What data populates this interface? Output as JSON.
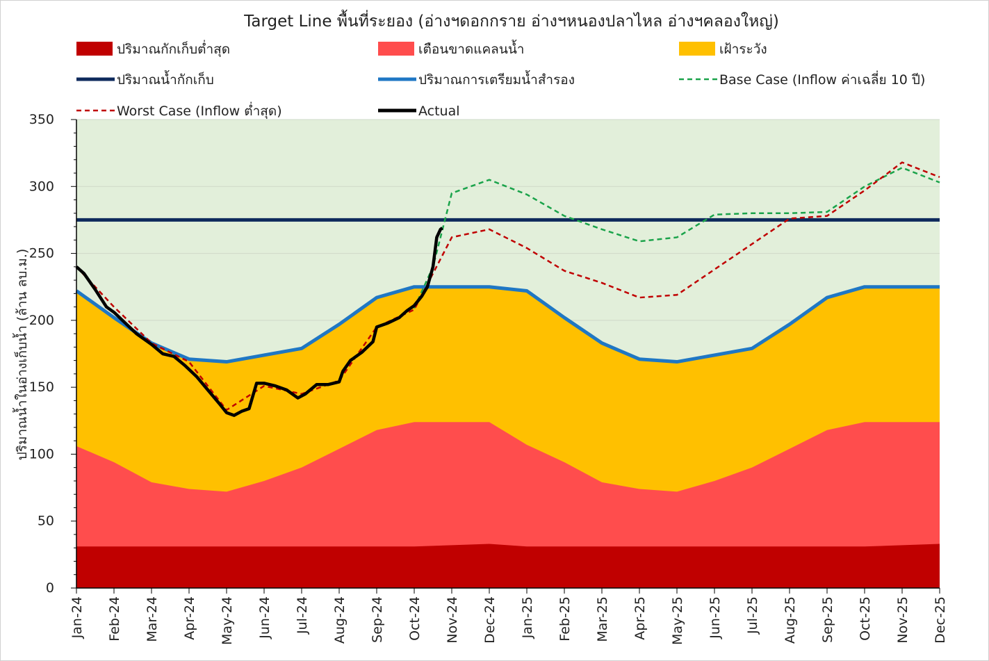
{
  "chart_data": {
    "type": "area",
    "title": "Target Line พื้นที่ระยอง (อ่างฯดอกกราย อ่างฯหนองปลาไหล อ่างฯคลองใหญ่)",
    "xlabel": "",
    "ylabel": "ปริมาณน้ำในอ่างเก็บน้ำ (ล้าน ลบ.ม.)",
    "ylim": [
      0,
      350
    ],
    "yticks": [
      0,
      50,
      100,
      150,
      200,
      250,
      300,
      350
    ],
    "categories": [
      "Jan-24",
      "Feb-24",
      "Mar-24",
      "Apr-24",
      "May-24",
      "Jun-24",
      "Jul-24",
      "Aug-24",
      "Sep-24",
      "Oct-24",
      "Nov-24",
      "Dec-24",
      "Jan-25",
      "Feb-25",
      "Mar-25",
      "Apr-25",
      "May-25",
      "Jun-25",
      "Jul-25",
      "Aug-25",
      "Sep-25",
      "Oct-25",
      "Nov-25",
      "Dec-25"
    ],
    "grid": true,
    "legend_position": "top",
    "series": [
      {
        "name": "ปริมาณกักเก็บต่ำสุด",
        "kind": "area",
        "color": "#c00000",
        "values": [
          31,
          31,
          31,
          31,
          31,
          31,
          31,
          31,
          31,
          31,
          32,
          33,
          31,
          31,
          31,
          31,
          31,
          31,
          31,
          31,
          31,
          31,
          32,
          33
        ]
      },
      {
        "name": "เตือนขาดแคลนน้ำ",
        "kind": "area",
        "color": "#ff4d4d",
        "values": [
          106,
          94,
          79,
          74,
          72,
          80,
          90,
          104,
          118,
          124,
          124,
          124,
          107,
          94,
          79,
          74,
          72,
          80,
          90,
          104,
          118,
          124,
          124,
          124
        ]
      },
      {
        "name": "เฝ้าระวัง",
        "kind": "area",
        "color": "#ffc000",
        "values": [
          222,
          202,
          183,
          171,
          169,
          174,
          179,
          197,
          217,
          225,
          225,
          225,
          222,
          202,
          183,
          171,
          169,
          174,
          179,
          197,
          217,
          225,
          225,
          225
        ]
      },
      {
        "name": "ปริมาณน้ำกักเก็บ",
        "kind": "line",
        "color": "#0e2a5c",
        "values": [
          275,
          275,
          275,
          275,
          275,
          275,
          275,
          275,
          275,
          275,
          275,
          275,
          275,
          275,
          275,
          275,
          275,
          275,
          275,
          275,
          275,
          275,
          275,
          275
        ]
      },
      {
        "name": "ปริมาณการเตรียมน้ำสำรอง",
        "kind": "line",
        "color": "#1f77c4",
        "values": [
          222,
          202,
          183,
          171,
          169,
          174,
          179,
          197,
          217,
          225,
          225,
          225,
          222,
          202,
          183,
          171,
          169,
          174,
          179,
          197,
          217,
          225,
          225,
          225
        ]
      },
      {
        "name": "Base Case (Inflow ค่าเฉลี่ย 10 ปี)",
        "kind": "dashed",
        "color": "#1aa34a",
        "x": [
          9,
          9.5,
          10,
          11,
          12,
          13,
          14,
          15,
          16,
          17,
          18,
          19,
          20,
          21,
          22,
          23
        ],
        "values": [
          209,
          240,
          295,
          305,
          294,
          278,
          268,
          259,
          262,
          279,
          280,
          280,
          281,
          300,
          314,
          303
        ]
      },
      {
        "name": "Worst Case (Inflow ต่ำสุด)",
        "kind": "dashed",
        "color": "#c00000",
        "x": [
          0,
          1,
          2,
          3,
          4,
          5,
          6,
          7,
          8,
          9,
          10,
          11,
          12,
          13,
          14,
          15,
          16,
          17,
          18,
          19,
          20,
          21,
          22,
          23
        ],
        "values": [
          240,
          210,
          183,
          169,
          133,
          151,
          145,
          155,
          195,
          208,
          262,
          268,
          254,
          237,
          228,
          217,
          219,
          238,
          257,
          276,
          278,
          297,
          318,
          307
        ]
      },
      {
        "name": "Actual",
        "kind": "thick",
        "color": "#000000",
        "x": [
          0,
          0.2,
          0.5,
          0.8,
          1.0,
          1.3,
          1.6,
          1.9,
          2.0,
          2.3,
          2.6,
          2.9,
          3.2,
          3.5,
          3.8,
          4.0,
          4.2,
          4.4,
          4.6,
          4.8,
          5.0,
          5.3,
          5.6,
          5.9,
          6.1,
          6.4,
          6.7,
          7.0,
          7.1,
          7.3,
          7.6,
          7.9,
          8.0,
          8.3,
          8.6,
          8.8,
          9.0,
          9.2,
          9.35,
          9.5,
          9.6,
          9.7,
          9.75
        ],
        "values": [
          240,
          235,
          223,
          210,
          206,
          198,
          190,
          184,
          182,
          175,
          173,
          166,
          158,
          148,
          138,
          131,
          129,
          132,
          134,
          153,
          153,
          151,
          148,
          142,
          145,
          152,
          152,
          154,
          162,
          170,
          176,
          184,
          195,
          198,
          202,
          207,
          211,
          218,
          225,
          240,
          262,
          268,
          269
        ]
      }
    ]
  },
  "layout_note": "plot area maps Jan-24..Dec-25 onto x axis"
}
